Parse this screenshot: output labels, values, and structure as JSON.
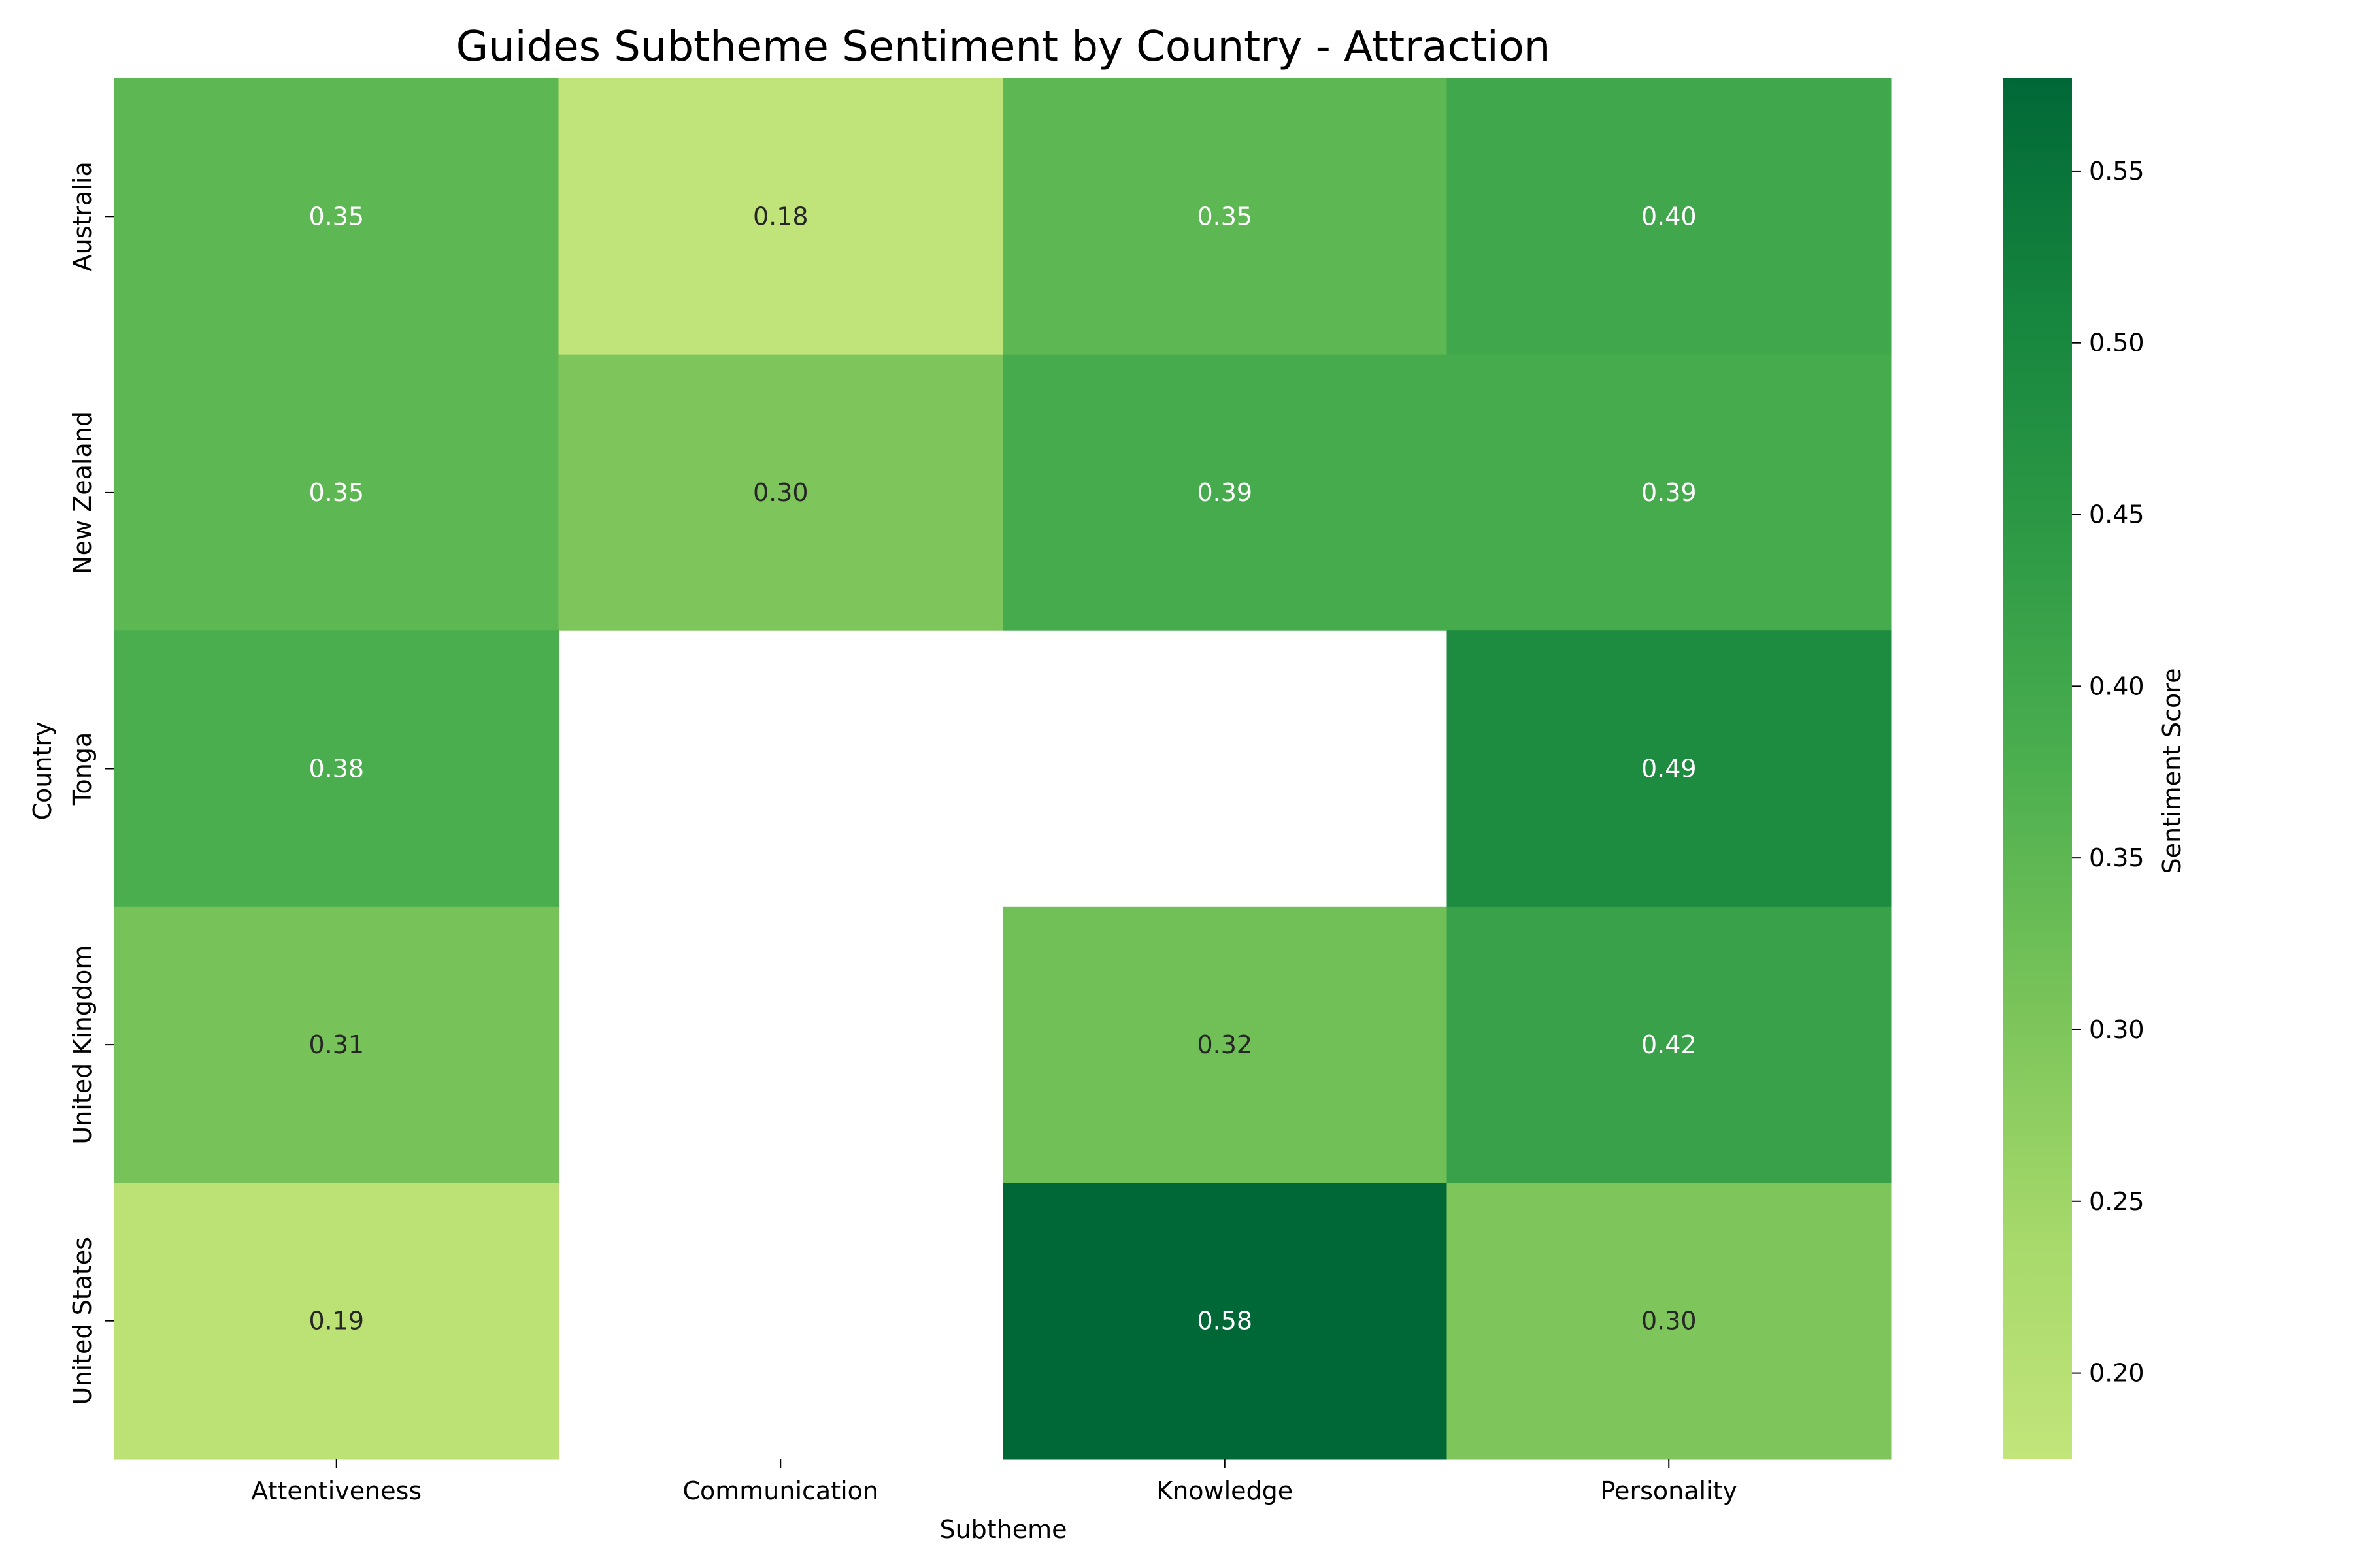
{
  "chart_data": {
    "type": "heatmap",
    "title": "Guides Subtheme Sentiment by Country - Attraction",
    "xlabel": "Subtheme",
    "ylabel": "Country",
    "x_categories": [
      "Attentiveness",
      "Communication",
      "Knowledge",
      "Personality"
    ],
    "y_categories": [
      "Australia",
      "New Zealand",
      "Tonga",
      "United Kingdom",
      "United States"
    ],
    "values": [
      [
        0.35,
        0.18,
        0.35,
        0.4
      ],
      [
        0.35,
        0.3,
        0.39,
        0.39
      ],
      [
        0.38,
        null,
        null,
        0.49
      ],
      [
        0.31,
        null,
        0.32,
        0.42
      ],
      [
        0.19,
        null,
        0.58,
        0.3
      ]
    ],
    "colorbar": {
      "label": "Sentiment Score",
      "range": [
        0.175,
        0.577
      ],
      "ticks": [
        0.2,
        0.25,
        0.3,
        0.35,
        0.4,
        0.45,
        0.5,
        0.55
      ],
      "tick_labels": [
        "0.20",
        "0.25",
        "0.30",
        "0.35",
        "0.40",
        "0.45",
        "0.50",
        "0.55"
      ]
    },
    "colormap": "YlGn",
    "colors": {
      "stops": [
        "#c2e57a",
        "#a5d86a",
        "#78c359",
        "#4caf4f",
        "#2e9a46",
        "#16853e",
        "#006837"
      ],
      "missing": "#ffffff",
      "text_dark": "#262626",
      "text_light": "#ffffff"
    }
  }
}
